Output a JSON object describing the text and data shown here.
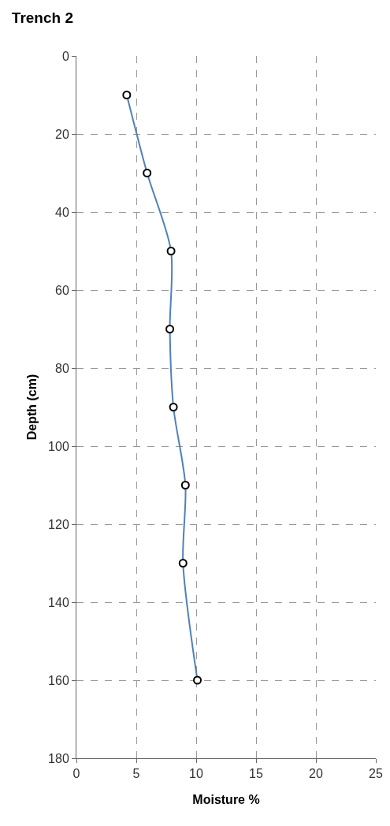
{
  "chart_data": {
    "type": "line",
    "title": "Trench 2",
    "xlabel": "Moisture %",
    "ylabel": "Depth (cm)",
    "series": [
      {
        "color": "#4f81bd",
        "x": [
          4.2,
          5.9,
          7.9,
          7.8,
          8.1,
          9.1,
          8.9,
          10.1
        ],
        "values": [
          10,
          30,
          50,
          70,
          90,
          110,
          130,
          160
        ]
      }
    ],
    "xlim": [
      0,
      25
    ],
    "xticks": [
      0,
      5,
      10,
      15,
      20,
      25
    ],
    "ylim": [
      180,
      0
    ],
    "yticks": [
      0,
      20,
      40,
      60,
      80,
      100,
      120,
      140,
      160,
      180
    ],
    "grid": true,
    "marker": "circle",
    "line_style": "solid"
  }
}
